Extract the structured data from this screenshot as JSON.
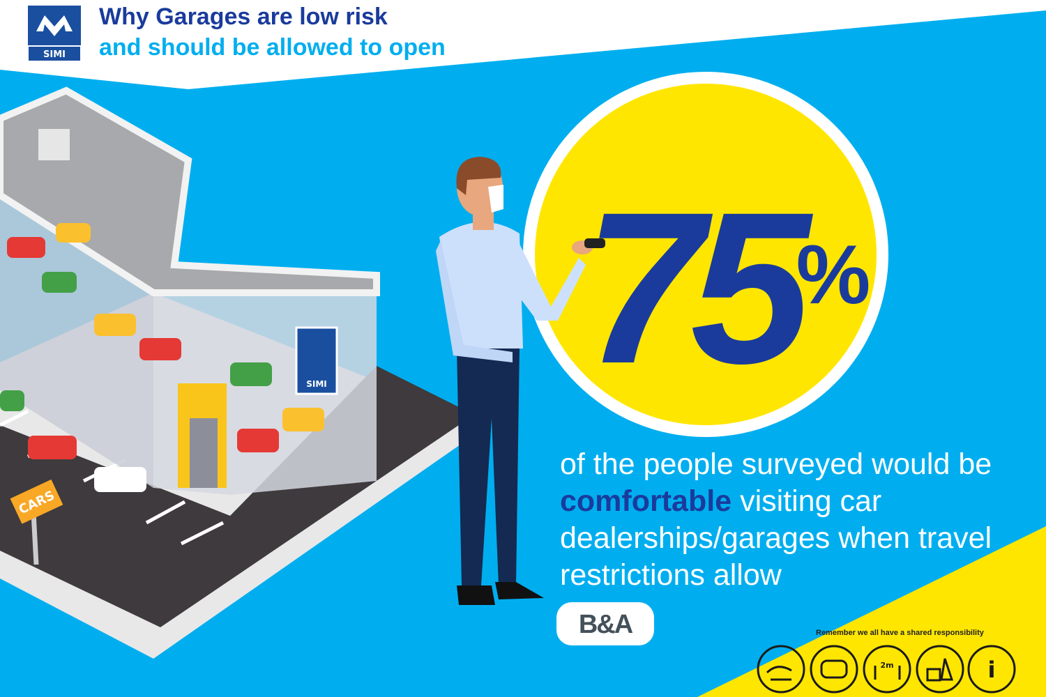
{
  "header": {
    "logo": "SIMI",
    "title_line1": "Why Garages are low risk",
    "title_line2": "and should be allowed to open"
  },
  "illustration": {
    "building_sign": "SIMI",
    "street_sign": "CARS"
  },
  "stat": {
    "number": "75",
    "unit": "%"
  },
  "body": {
    "before": "of the people surveyed would be",
    "highlight": "comfortable",
    "after": "visiting car dealerships/garages when travel restrictions allow"
  },
  "source_logo": "B&A",
  "footer": {
    "note": "Remember we all have a shared responsibility",
    "distance_icon": "2m",
    "info_icon": "i"
  }
}
